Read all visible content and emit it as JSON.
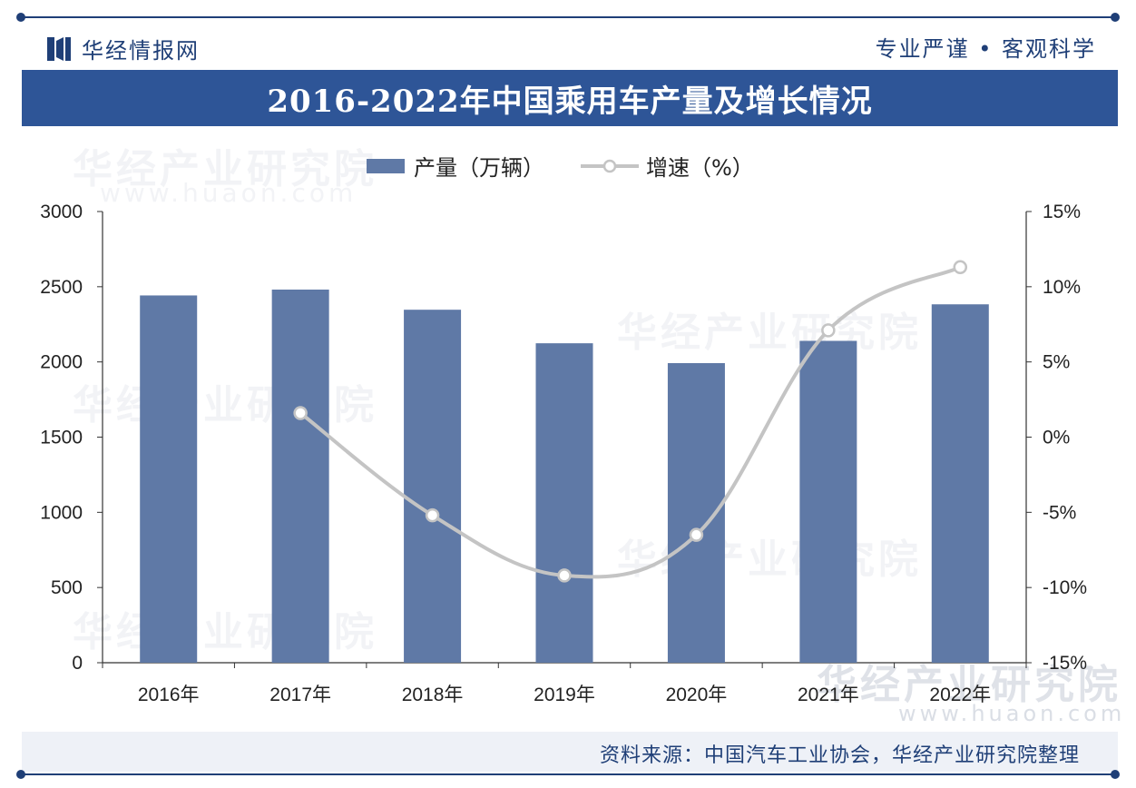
{
  "header": {
    "brand": "华经情报网",
    "slogan": "专业严谨 • 客观科学"
  },
  "chart_data": {
    "type": "bar+line",
    "title": "2016-2022年中国乘用车产量及增长情况",
    "categories": [
      "2016年",
      "2017年",
      "2018年",
      "2019年",
      "2020年",
      "2021年",
      "2022年"
    ],
    "series": [
      {
        "name": "产量（万辆）",
        "type": "bar",
        "axis": "left",
        "values": [
          2442,
          2481,
          2347,
          2124,
          1992,
          2140,
          2383
        ]
      },
      {
        "name": "增速（%）",
        "type": "line",
        "axis": "right",
        "values": [
          null,
          1.6,
          -5.2,
          -9.2,
          -6.5,
          7.1,
          11.3
        ]
      }
    ],
    "y_left": {
      "range": [
        0,
        3000
      ],
      "ticks": [
        "0",
        "500",
        "1000",
        "1500",
        "2000",
        "2500",
        "3000"
      ]
    },
    "y_right": {
      "range": [
        -15,
        15
      ],
      "ticks": [
        "-15%",
        "-10%",
        "-5%",
        "0%",
        "5%",
        "10%",
        "15%"
      ]
    },
    "grid": false,
    "legend_position": "top",
    "colors": {
      "bar": "#5f79a6",
      "line": "#c4c4c4",
      "marker_fill": "#ffffff"
    }
  },
  "watermark": {
    "text": "华经产业研究院",
    "url": "www.huaon.com"
  },
  "footer": {
    "source": "资料来源：中国汽车工业协会，华经产业研究院整理"
  },
  "colors": {
    "brand": "#1f3f77",
    "title_bar": "#2e5597"
  }
}
